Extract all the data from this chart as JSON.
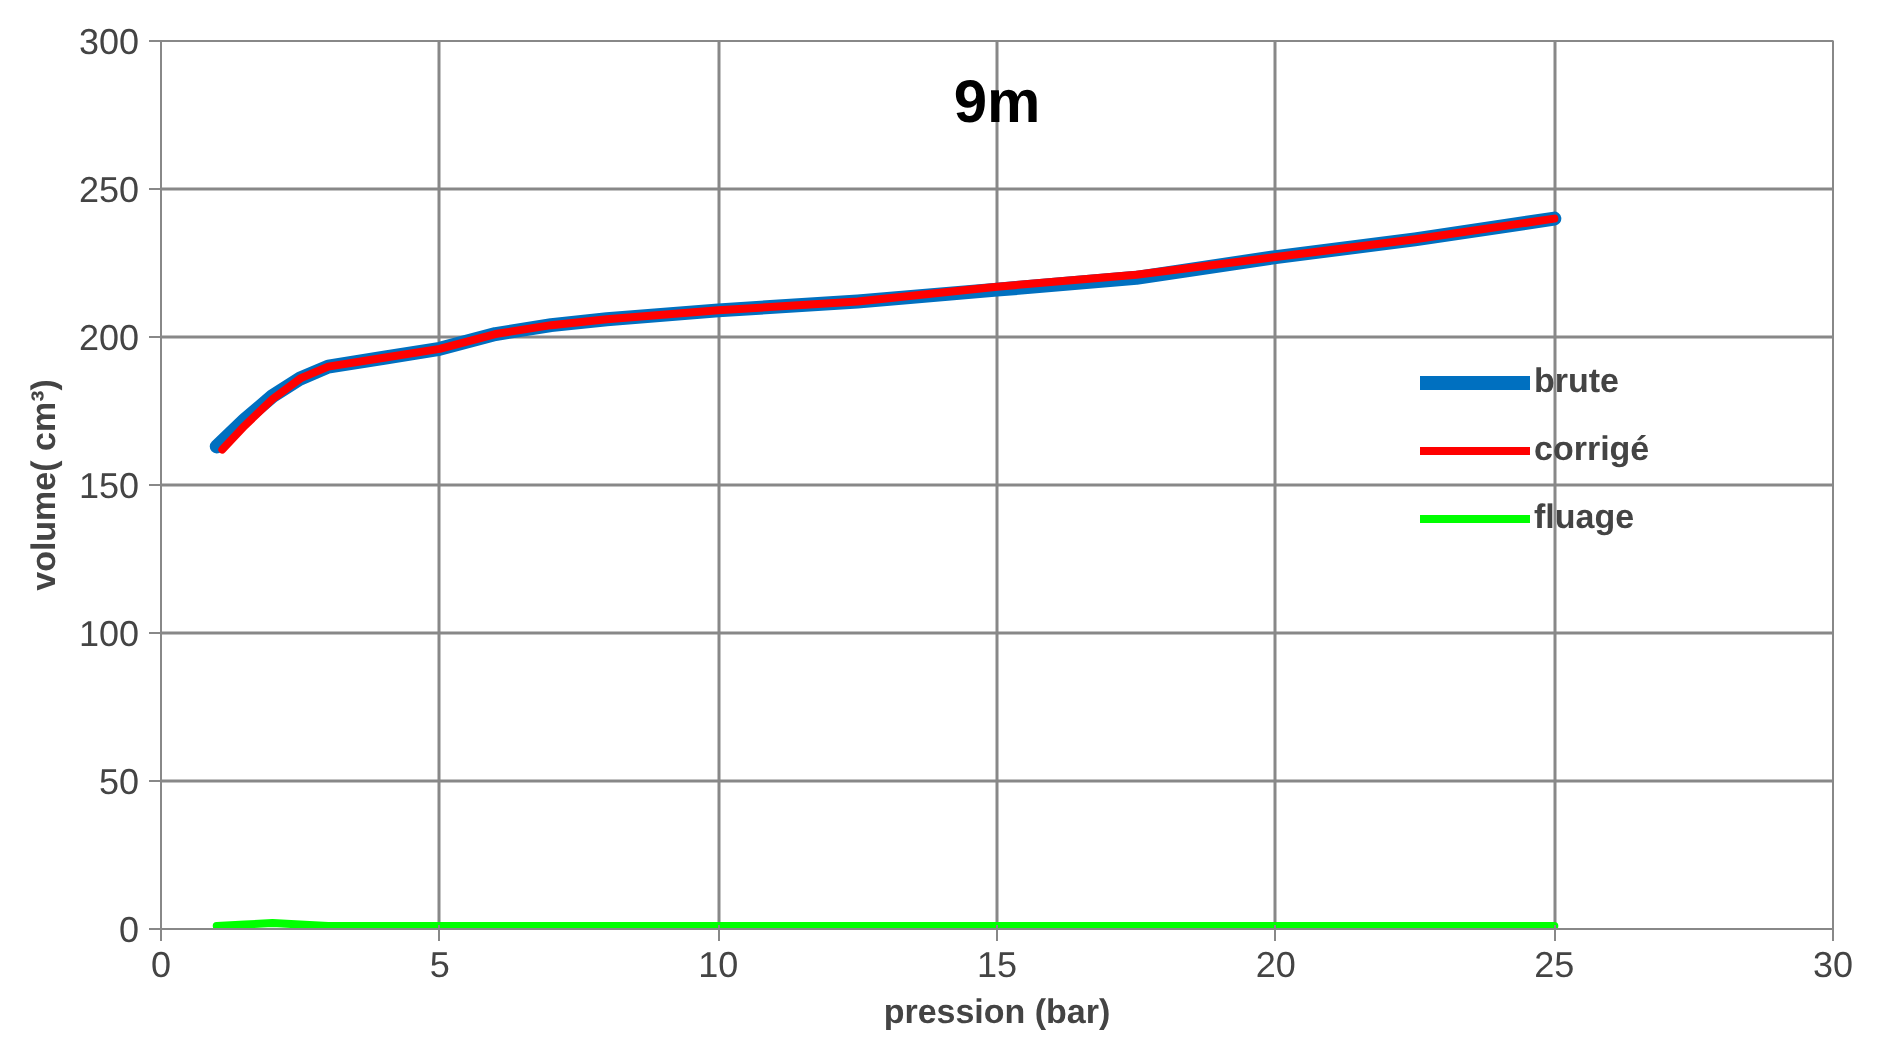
{
  "chart_data": {
    "type": "line",
    "title": "9m",
    "xlabel": "pression (bar)",
    "ylabel": "volume( cm³)",
    "xlim": [
      0,
      30
    ],
    "xticks": [
      0,
      5,
      10,
      15,
      20,
      25,
      30
    ],
    "ylim": [
      0,
      300
    ],
    "yticks": [
      0,
      50,
      100,
      150,
      200,
      250,
      300
    ],
    "grid": true,
    "legend": "right",
    "marker": "none",
    "line_style": "solid",
    "series": [
      {
        "name": "brute",
        "color": "#0070c0",
        "x": [
          1,
          1.5,
          2,
          2.5,
          3,
          4,
          5,
          6,
          7,
          8,
          10,
          12.5,
          15,
          17.5,
          20,
          22.5,
          25
        ],
        "values": [
          163,
          172,
          180,
          186,
          190,
          193,
          196,
          201,
          204,
          206,
          209,
          212,
          216,
          220,
          227,
          233,
          240
        ]
      },
      {
        "name": "corrigé",
        "color": "#ff0000",
        "x": [
          1.1,
          1.5,
          2,
          2.5,
          3,
          4,
          5,
          6,
          7,
          8,
          10,
          12.5,
          15,
          17.5,
          20,
          22.5,
          25
        ],
        "values": [
          162,
          170,
          179,
          186,
          190,
          193,
          196,
          201,
          204,
          206,
          209,
          212,
          217,
          221,
          227,
          233,
          240
        ]
      },
      {
        "name": "fluage",
        "color": "#00ff00",
        "x": [
          1,
          1.5,
          2,
          2.5,
          3,
          5,
          10,
          15,
          20,
          25
        ],
        "values": [
          1,
          1.5,
          2,
          1.5,
          1,
          1,
          1,
          1,
          1,
          1
        ]
      }
    ]
  }
}
